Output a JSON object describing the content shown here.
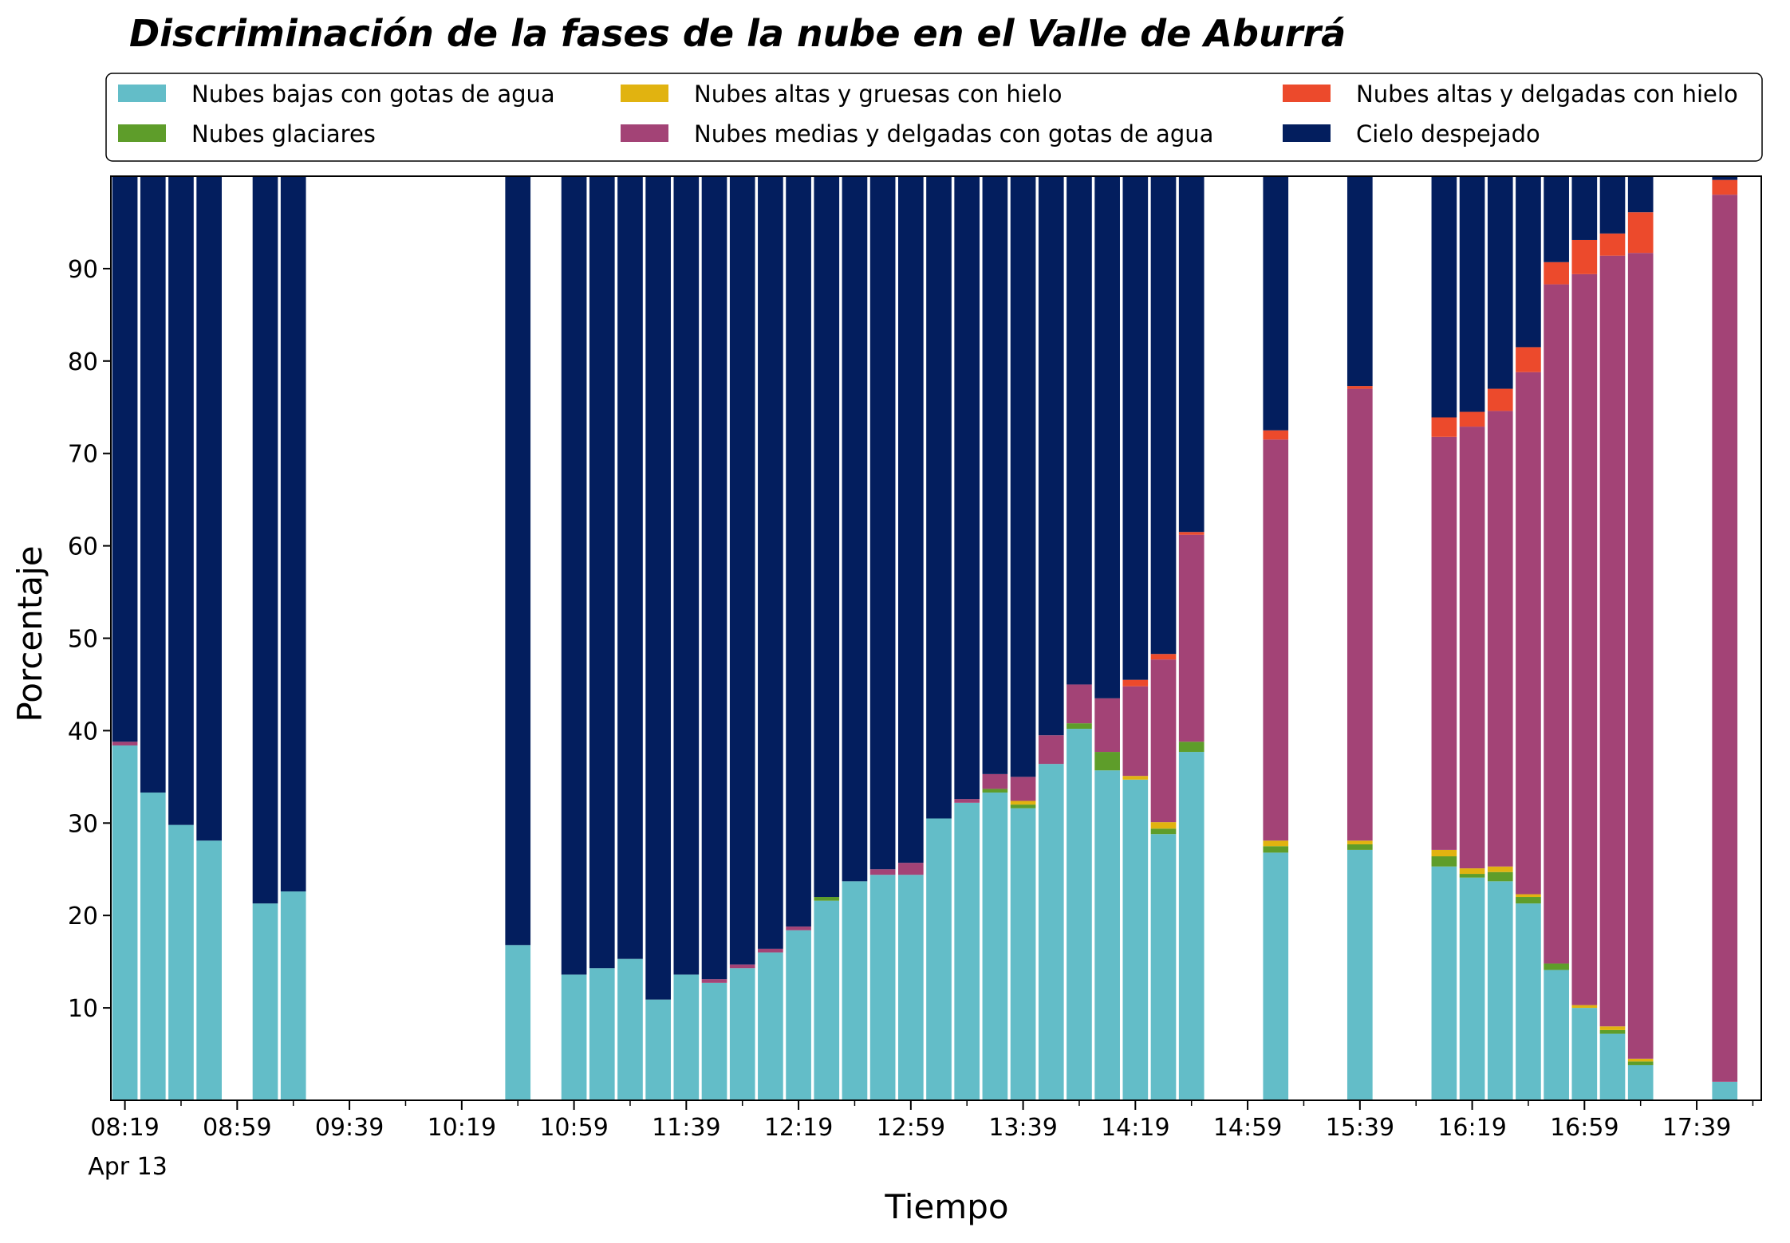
{
  "chart_data": {
    "type": "bar",
    "stacked": true,
    "title": "Discriminación de la fases de la nube en el Valle de Aburrá",
    "xlabel": "Tiempo",
    "ylabel": "Porcentaje",
    "ylim": [
      0,
      100
    ],
    "y_ticks": [
      10,
      20,
      30,
      40,
      50,
      60,
      70,
      80,
      90
    ],
    "x_range_minutes": [
      494,
      1082
    ],
    "x_ticks": [
      {
        "minute": 499,
        "label": "08:19"
      },
      {
        "minute": 539,
        "label": "08:59"
      },
      {
        "minute": 579,
        "label": "09:39"
      },
      {
        "minute": 619,
        "label": "10:19"
      },
      {
        "minute": 659,
        "label": "10:59"
      },
      {
        "minute": 699,
        "label": "11:39"
      },
      {
        "minute": 739,
        "label": "12:19"
      },
      {
        "minute": 779,
        "label": "12:59"
      },
      {
        "minute": 819,
        "label": "13:39"
      },
      {
        "minute": 859,
        "label": "14:19"
      },
      {
        "minute": 899,
        "label": "14:59"
      },
      {
        "minute": 939,
        "label": "15:39"
      },
      {
        "minute": 979,
        "label": "16:19"
      },
      {
        "minute": 1019,
        "label": "16:59"
      },
      {
        "minute": 1059,
        "label": "17:39"
      }
    ],
    "x_minor_tick_minutes": [
      519,
      559,
      599,
      639,
      679,
      719,
      759,
      799,
      839,
      879,
      919,
      959,
      999,
      1039,
      1079
    ],
    "date_label": "Apr 13",
    "grid": false,
    "legend_position": "top",
    "bar_width_minutes": 9,
    "series": [
      {
        "name": "Nubes bajas con gotas de agua",
        "color": "#63bdc8"
      },
      {
        "name": "Nubes glaciares",
        "color": "#5e9d2a"
      },
      {
        "name": "Nubes altas y gruesas con hielo",
        "color": "#e1b310"
      },
      {
        "name": "Nubes medias y delgadas con gotas de agua",
        "color": "#a34376"
      },
      {
        "name": "Nubes altas y delgadas con hielo",
        "color": "#ec4a2c"
      },
      {
        "name": "Cielo despejado",
        "color": "#031e5e"
      }
    ],
    "bars": [
      {
        "time": "08:19",
        "values": [
          38.4,
          0,
          0,
          0.4,
          0,
          61.2
        ]
      },
      {
        "time": "08:29",
        "values": [
          33.3,
          0,
          0,
          0,
          0,
          66.7
        ]
      },
      {
        "time": "08:39",
        "values": [
          29.8,
          0,
          0,
          0,
          0,
          70.2
        ]
      },
      {
        "time": "08:49",
        "values": [
          28.1,
          0,
          0,
          0,
          0,
          71.9
        ]
      },
      {
        "time": "09:09",
        "values": [
          21.3,
          0,
          0,
          0,
          0,
          78.7
        ]
      },
      {
        "time": "09:19",
        "values": [
          22.6,
          0,
          0,
          0,
          0,
          77.4
        ]
      },
      {
        "time": "10:39",
        "values": [
          16.8,
          0,
          0,
          0,
          0,
          83.2
        ]
      },
      {
        "time": "10:59",
        "values": [
          13.6,
          0,
          0,
          0,
          0,
          86.4
        ]
      },
      {
        "time": "11:09",
        "values": [
          14.3,
          0,
          0,
          0,
          0,
          85.7
        ]
      },
      {
        "time": "11:19",
        "values": [
          15.3,
          0,
          0,
          0,
          0,
          84.7
        ]
      },
      {
        "time": "11:29",
        "values": [
          10.9,
          0,
          0,
          0,
          0,
          89.1
        ]
      },
      {
        "time": "11:39",
        "values": [
          13.6,
          0,
          0,
          0,
          0,
          86.4
        ]
      },
      {
        "time": "11:49",
        "values": [
          12.7,
          0,
          0,
          0.4,
          0,
          86.9
        ]
      },
      {
        "time": "11:59",
        "values": [
          14.3,
          0,
          0,
          0.4,
          0,
          85.3
        ]
      },
      {
        "time": "12:09",
        "values": [
          16.0,
          0,
          0,
          0.4,
          0,
          83.6
        ]
      },
      {
        "time": "12:19",
        "values": [
          18.4,
          0,
          0,
          0.4,
          0,
          81.2
        ]
      },
      {
        "time": "12:29",
        "values": [
          21.6,
          0.4,
          0,
          0,
          0,
          78.0
        ]
      },
      {
        "time": "12:39",
        "values": [
          23.7,
          0,
          0,
          0,
          0,
          76.3
        ]
      },
      {
        "time": "12:49",
        "values": [
          24.4,
          0,
          0,
          0.6,
          0,
          75.0
        ]
      },
      {
        "time": "12:59",
        "values": [
          24.4,
          0,
          0,
          1.3,
          0,
          74.3
        ]
      },
      {
        "time": "13:09",
        "values": [
          30.5,
          0,
          0,
          0,
          0,
          69.5
        ]
      },
      {
        "time": "13:19",
        "values": [
          32.2,
          0,
          0,
          0.4,
          0,
          67.4
        ]
      },
      {
        "time": "13:29",
        "values": [
          33.3,
          0.4,
          0,
          1.6,
          0,
          64.7
        ]
      },
      {
        "time": "13:39",
        "values": [
          31.6,
          0.4,
          0.4,
          2.6,
          0,
          65.0
        ]
      },
      {
        "time": "13:49",
        "values": [
          36.4,
          0,
          0,
          3.1,
          0,
          60.5
        ]
      },
      {
        "time": "13:59",
        "values": [
          40.2,
          0.6,
          0,
          4.2,
          0,
          55.0
        ]
      },
      {
        "time": "14:09",
        "values": [
          35.7,
          2.0,
          0,
          5.8,
          0,
          56.5
        ]
      },
      {
        "time": "14:19",
        "values": [
          34.7,
          0,
          0.4,
          9.7,
          0.7,
          54.5
        ]
      },
      {
        "time": "14:29",
        "values": [
          28.8,
          0.6,
          0.7,
          17.6,
          0.6,
          51.7
        ]
      },
      {
        "time": "14:39",
        "values": [
          37.7,
          1.1,
          0,
          22.4,
          0.3,
          38.5
        ]
      },
      {
        "time": "15:09",
        "values": [
          26.8,
          0.7,
          0.6,
          43.4,
          1.0,
          27.5
        ]
      },
      {
        "time": "15:39",
        "values": [
          27.1,
          0.6,
          0.4,
          48.9,
          0.3,
          22.7
        ]
      },
      {
        "time": "16:09",
        "values": [
          25.3,
          1.1,
          0.7,
          44.7,
          2.1,
          26.1
        ]
      },
      {
        "time": "16:19",
        "values": [
          24.1,
          0.4,
          0.6,
          47.8,
          1.6,
          25.5
        ]
      },
      {
        "time": "16:29",
        "values": [
          23.7,
          1.0,
          0.6,
          49.3,
          2.4,
          23.0
        ]
      },
      {
        "time": "16:39",
        "values": [
          21.3,
          0.7,
          0.3,
          56.5,
          2.7,
          18.5
        ]
      },
      {
        "time": "16:49",
        "values": [
          14.1,
          0.7,
          0,
          73.5,
          2.4,
          9.3
        ]
      },
      {
        "time": "16:59",
        "values": [
          10.0,
          0,
          0.3,
          79.1,
          3.7,
          6.9
        ]
      },
      {
        "time": "17:09",
        "values": [
          7.2,
          0.4,
          0.4,
          83.4,
          2.4,
          6.2
        ]
      },
      {
        "time": "17:19",
        "values": [
          3.8,
          0.4,
          0.3,
          87.2,
          4.4,
          3.9
        ]
      },
      {
        "time": "17:49",
        "values": [
          2.0,
          0,
          0,
          96.0,
          1.6,
          0.4
        ]
      }
    ]
  }
}
